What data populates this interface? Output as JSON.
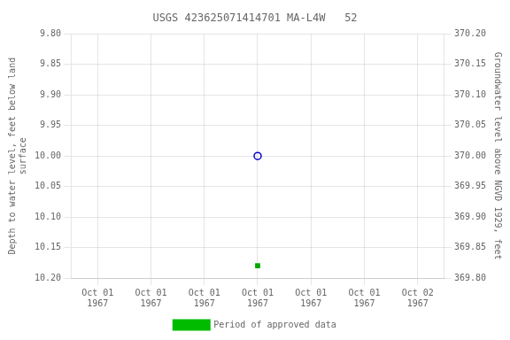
{
  "chart_data": {
    "type": "scatter",
    "title": "USGS 423625071414701 MA-L4W   52",
    "categories": [
      "Oct 01\n1967",
      "Oct 01\n1967",
      "Oct 01\n1967",
      "Oct 01\n1967",
      "Oct 01\n1967",
      "Oct 01\n1967",
      "Oct 02\n1967"
    ],
    "ylabel": "Depth to water level, feet below land\nsurface",
    "y2label": "Groundwater level above NGVD 1929, feet",
    "series": [
      {
        "color": "#0000cc",
        "marker": "open_circle",
        "values": [
          null,
          null,
          null,
          10.0,
          null,
          null,
          null
        ]
      },
      {
        "color": "#00aa00",
        "marker": "square",
        "values": [
          null,
          null,
          null,
          10.18,
          null,
          null,
          null
        ]
      },
      {
        "name": "Period of approved data",
        "color": "#00bb00",
        "values": [
          null,
          null,
          null,
          null,
          null,
          null,
          null
        ]
      }
    ],
    "ylim": [
      10.2,
      9.8
    ],
    "yticks": [
      {
        "value": 9.8,
        "label": "9.80"
      },
      {
        "value": 9.85,
        "label": "9.85"
      },
      {
        "value": 9.9,
        "label": "9.90"
      },
      {
        "value": 9.95,
        "label": "9.95"
      },
      {
        "value": 10.0,
        "label": "10.00"
      },
      {
        "value": 10.05,
        "label": "10.05"
      },
      {
        "value": 10.1,
        "label": "10.10"
      },
      {
        "value": 10.15,
        "label": "10.15"
      },
      {
        "value": 10.2,
        "label": "10.20"
      }
    ],
    "y2lim": [
      369.8,
      370.2
    ],
    "y2ticks": [
      {
        "value": 369.8,
        "label": "369.80"
      },
      {
        "value": 369.85,
        "label": "369.85"
      },
      {
        "value": 369.9,
        "label": "369.90"
      },
      {
        "value": 369.95,
        "label": "369.95"
      },
      {
        "value": 370.0,
        "label": "370.00"
      },
      {
        "value": 370.05,
        "label": "370.05"
      },
      {
        "value": 370.1,
        "label": "370.10"
      },
      {
        "value": 370.15,
        "label": "370.15"
      },
      {
        "value": 370.2,
        "label": "370.20"
      }
    ],
    "grid": true,
    "legend": "bottom"
  }
}
